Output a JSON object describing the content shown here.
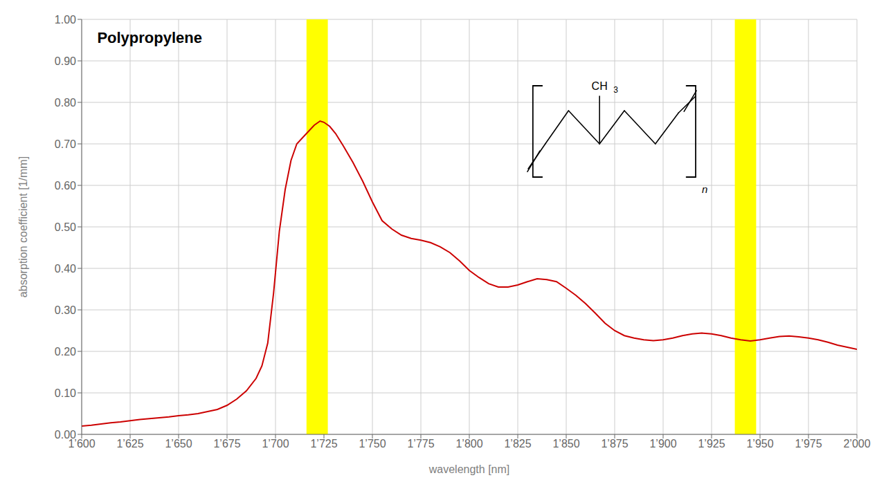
{
  "chart_data": {
    "type": "line",
    "title": "Polypropylene",
    "x_label": "wavelength  [nm]",
    "y_label": "absorption coefficient [1/mm]",
    "xlim": [
      1600,
      2000
    ],
    "ylim": [
      0.0,
      1.0
    ],
    "xticks": [
      {
        "value": 1600,
        "label": "1’600"
      },
      {
        "value": 1625,
        "label": "1’625"
      },
      {
        "value": 1650,
        "label": "1’650"
      },
      {
        "value": 1675,
        "label": "1’675"
      },
      {
        "value": 1700,
        "label": "1’700"
      },
      {
        "value": 1725,
        "label": "1’725"
      },
      {
        "value": 1750,
        "label": "1’750"
      },
      {
        "value": 1775,
        "label": "1’775"
      },
      {
        "value": 1800,
        "label": "1’800"
      },
      {
        "value": 1825,
        "label": "1’825"
      },
      {
        "value": 1850,
        "label": "1’850"
      },
      {
        "value": 1875,
        "label": "1’875"
      },
      {
        "value": 1900,
        "label": "1’900"
      },
      {
        "value": 1925,
        "label": "1’925"
      },
      {
        "value": 1950,
        "label": "1’950"
      },
      {
        "value": 1975,
        "label": "1’975"
      },
      {
        "value": 2000,
        "label": "2’000"
      }
    ],
    "yticks": [
      {
        "value": 0.0,
        "label": "0.00"
      },
      {
        "value": 0.1,
        "label": "0.10"
      },
      {
        "value": 0.2,
        "label": "0.20"
      },
      {
        "value": 0.3,
        "label": "0.30"
      },
      {
        "value": 0.4,
        "label": "0.40"
      },
      {
        "value": 0.5,
        "label": "0.50"
      },
      {
        "value": 0.6,
        "label": "0.60"
      },
      {
        "value": 0.7,
        "label": "0.70"
      },
      {
        "value": 0.8,
        "label": "0.80"
      },
      {
        "value": 0.9,
        "label": "0.90"
      },
      {
        "value": 1.0,
        "label": "1.00"
      }
    ],
    "grid": true,
    "color": "#cc0000",
    "bands": [
      {
        "xmin": 1716,
        "xmax": 1727,
        "color": "#ffff00"
      },
      {
        "xmin": 1937,
        "xmax": 1948,
        "color": "#ffff00"
      }
    ],
    "annotations": [
      "CH",
      "3",
      "n"
    ],
    "x": [
      1600,
      1605,
      1610,
      1615,
      1620,
      1625,
      1630,
      1635,
      1640,
      1645,
      1650,
      1655,
      1660,
      1665,
      1670,
      1675,
      1680,
      1685,
      1690,
      1693,
      1696,
      1699,
      1702,
      1705,
      1708,
      1711,
      1714,
      1717,
      1720,
      1723,
      1725,
      1728,
      1731,
      1735,
      1740,
      1745,
      1750,
      1755,
      1760,
      1765,
      1770,
      1775,
      1780,
      1785,
      1790,
      1795,
      1800,
      1805,
      1810,
      1815,
      1820,
      1825,
      1830,
      1835,
      1840,
      1845,
      1850,
      1855,
      1860,
      1865,
      1870,
      1875,
      1880,
      1885,
      1890,
      1895,
      1900,
      1905,
      1910,
      1915,
      1920,
      1925,
      1930,
      1935,
      1940,
      1945,
      1950,
      1955,
      1960,
      1965,
      1970,
      1975,
      1980,
      1985,
      1990,
      1995,
      2000
    ],
    "values": [
      0.02,
      0.022,
      0.025,
      0.028,
      0.03,
      0.033,
      0.036,
      0.038,
      0.04,
      0.042,
      0.045,
      0.047,
      0.05,
      0.055,
      0.06,
      0.07,
      0.085,
      0.105,
      0.135,
      0.165,
      0.22,
      0.34,
      0.49,
      0.59,
      0.66,
      0.7,
      0.715,
      0.73,
      0.745,
      0.755,
      0.752,
      0.742,
      0.725,
      0.695,
      0.655,
      0.61,
      0.56,
      0.515,
      0.495,
      0.48,
      0.472,
      0.468,
      0.462,
      0.452,
      0.438,
      0.418,
      0.395,
      0.378,
      0.363,
      0.355,
      0.355,
      0.36,
      0.368,
      0.375,
      0.373,
      0.368,
      0.352,
      0.335,
      0.315,
      0.292,
      0.268,
      0.25,
      0.238,
      0.232,
      0.228,
      0.226,
      0.228,
      0.232,
      0.238,
      0.242,
      0.244,
      0.242,
      0.238,
      0.232,
      0.228,
      0.225,
      0.228,
      0.232,
      0.236,
      0.237,
      0.235,
      0.232,
      0.228,
      0.222,
      0.215,
      0.21,
      0.205
    ]
  }
}
